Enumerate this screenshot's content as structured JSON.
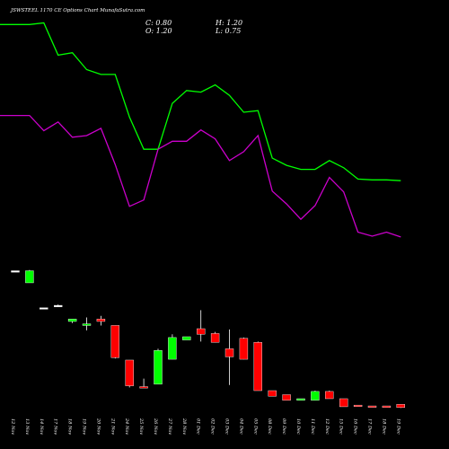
{
  "chart_data": {
    "type": "candlestick",
    "title": "JSWSTEEL 1170 CE Options Chart MunafaSutra.com",
    "ohlc_readout": {
      "c_label": "C: 0.80",
      "h_label": "H: 1.20",
      "o_label": "O: 1.20",
      "l_label": "L: 0.75"
    },
    "colors": {
      "background": "#000000",
      "up": "#00ff00",
      "down": "#ff0000",
      "flat": "#ffffff",
      "green_line": "#00ff00",
      "magenta_line": "#cc00cc",
      "text": "#ffffff"
    },
    "dates": [
      "12 Nov",
      "13 Nov",
      "14 Nov",
      "17 Nov",
      "18 Nov",
      "19 Nov",
      "20 Nov",
      "21 Nov",
      "24 Nov",
      "25 Nov",
      "26 Nov",
      "27 Nov",
      "28 Nov",
      "01 Dec",
      "02 Dec",
      "03 Dec",
      "04 Dec",
      "05 Dec",
      "08 Dec",
      "09 Dec",
      "10 Dec",
      "11 Dec",
      "12 Dec",
      "15 Dec",
      "16 Dec",
      "17 Dec",
      "18 Dec",
      "19 Dec"
    ],
    "candles": [
      {
        "o": 17.8,
        "h": 17.8,
        "l": 17.8,
        "c": 17.8
      },
      {
        "o": 16.3,
        "h": 17.9,
        "l": 16.3,
        "c": 17.8
      },
      {
        "o": 13.2,
        "h": 13.2,
        "l": 13.2,
        "c": 13.2
      },
      {
        "o": 13.5,
        "h": 13.6,
        "l": 13.3,
        "c": 13.5
      },
      {
        "o": 11.5,
        "h": 11.7,
        "l": 11.3,
        "c": 11.8
      },
      {
        "o": 11.0,
        "h": 12.0,
        "l": 10.4,
        "c": 11.2
      },
      {
        "o": 11.8,
        "h": 12.2,
        "l": 11.0,
        "c": 11.5
      },
      {
        "o": 11.0,
        "h": 11.0,
        "l": 6.9,
        "c": 7.0
      },
      {
        "o": 6.7,
        "h": 6.7,
        "l": 3.3,
        "c": 3.5
      },
      {
        "o": 3.4,
        "h": 4.4,
        "l": 3.3,
        "c": 3.3
      },
      {
        "o": 3.7,
        "h": 8.1,
        "l": 3.7,
        "c": 7.9
      },
      {
        "o": 6.8,
        "h": 9.9,
        "l": 6.8,
        "c": 9.5
      },
      {
        "o": 9.2,
        "h": 9.6,
        "l": 9.2,
        "c": 9.6
      },
      {
        "o": 10.6,
        "h": 12.9,
        "l": 9.0,
        "c": 9.9
      },
      {
        "o": 10.0,
        "h": 10.2,
        "l": 8.9,
        "c": 8.9
      },
      {
        "o": 8.1,
        "h": 10.5,
        "l": 3.6,
        "c": 7.1
      },
      {
        "o": 9.4,
        "h": 9.5,
        "l": 6.8,
        "c": 6.8
      },
      {
        "o": 8.9,
        "h": 9.0,
        "l": 2.9,
        "c": 2.9
      },
      {
        "o": 2.9,
        "h": 2.9,
        "l": 2.2,
        "c": 2.2
      },
      {
        "o": 2.4,
        "h": 2.4,
        "l": 1.7,
        "c": 1.7
      },
      {
        "o": 1.7,
        "h": 1.9,
        "l": 1.7,
        "c": 1.9
      },
      {
        "o": 1.7,
        "h": 2.9,
        "l": 1.7,
        "c": 2.8
      },
      {
        "o": 2.8,
        "h": 2.9,
        "l": 1.9,
        "c": 1.9
      },
      {
        "o": 1.9,
        "h": 1.9,
        "l": 0.9,
        "c": 0.9
      },
      {
        "o": 1.1,
        "h": 1.1,
        "l": 1.0,
        "c": 1.0
      },
      {
        "o": 1.0,
        "h": 1.0,
        "l": 0.9,
        "c": 0.9
      },
      {
        "o": 1.0,
        "h": 1.0,
        "l": 0.8,
        "c": 0.8
      },
      {
        "o": 1.2,
        "h": 1.2,
        "l": 0.75,
        "c": 0.8
      }
    ],
    "green_line": [
      48.4,
      48.4,
      48.6,
      44.6,
      44.9,
      42.8,
      42.2,
      42.2,
      36.9,
      32.9,
      32.9,
      38.6,
      40.2,
      40.0,
      40.9,
      39.6,
      37.5,
      37.7,
      31.8,
      30.9,
      30.4,
      30.4,
      31.5,
      30.6,
      29.2,
      29.1,
      29.1,
      29.0
    ],
    "magenta_line": [
      37.1,
      37.1,
      35.2,
      36.3,
      34.4,
      34.6,
      35.5,
      31.0,
      25.8,
      26.6,
      32.9,
      33.9,
      33.9,
      35.3,
      34.2,
      31.5,
      32.6,
      34.6,
      27.7,
      26.1,
      24.2,
      25.9,
      29.4,
      27.6,
      22.6,
      22.1,
      22.6,
      22.0
    ]
  }
}
